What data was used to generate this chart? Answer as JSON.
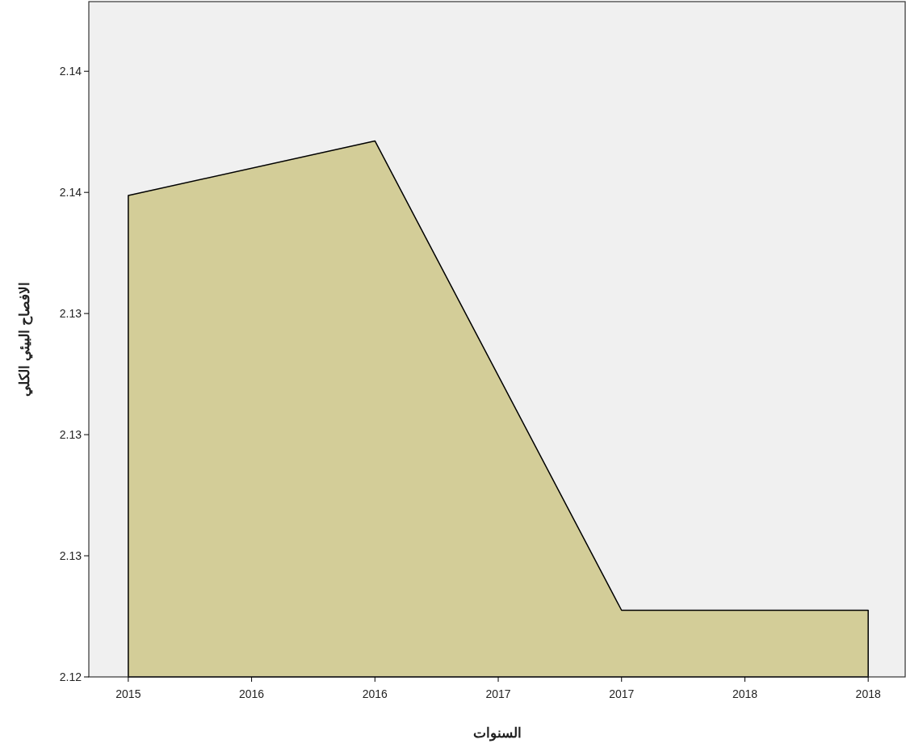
{
  "chart_data": {
    "type": "area",
    "xlabel": "السنوات",
    "ylabel": "الافصاح البيئي الكلي",
    "x": [
      2015,
      2016,
      2017,
      2018
    ],
    "values": [
      2.1379,
      2.1397,
      2.1242,
      2.1242
    ],
    "color": "#d3cd98",
    "xlim": [
      2014.84,
      2018.15
    ],
    "ylim": [
      2.122,
      2.1443
    ],
    "xticks": [
      {
        "value": 2015,
        "label": "2015"
      },
      {
        "value": 2015.5,
        "label": "2016"
      },
      {
        "value": 2016,
        "label": "2016"
      },
      {
        "value": 2016.5,
        "label": "2017"
      },
      {
        "value": 2017,
        "label": "2017"
      },
      {
        "value": 2017.5,
        "label": "2018"
      },
      {
        "value": 2018,
        "label": "2018"
      }
    ],
    "yticks": [
      {
        "value": 2.122,
        "label": "2.12"
      },
      {
        "value": 2.126,
        "label": "2.13"
      },
      {
        "value": 2.13,
        "label": "2.13"
      },
      {
        "value": 2.134,
        "label": "2.13"
      },
      {
        "value": 2.138,
        "label": "2.14"
      },
      {
        "value": 2.142,
        "label": "2.14"
      }
    ]
  }
}
